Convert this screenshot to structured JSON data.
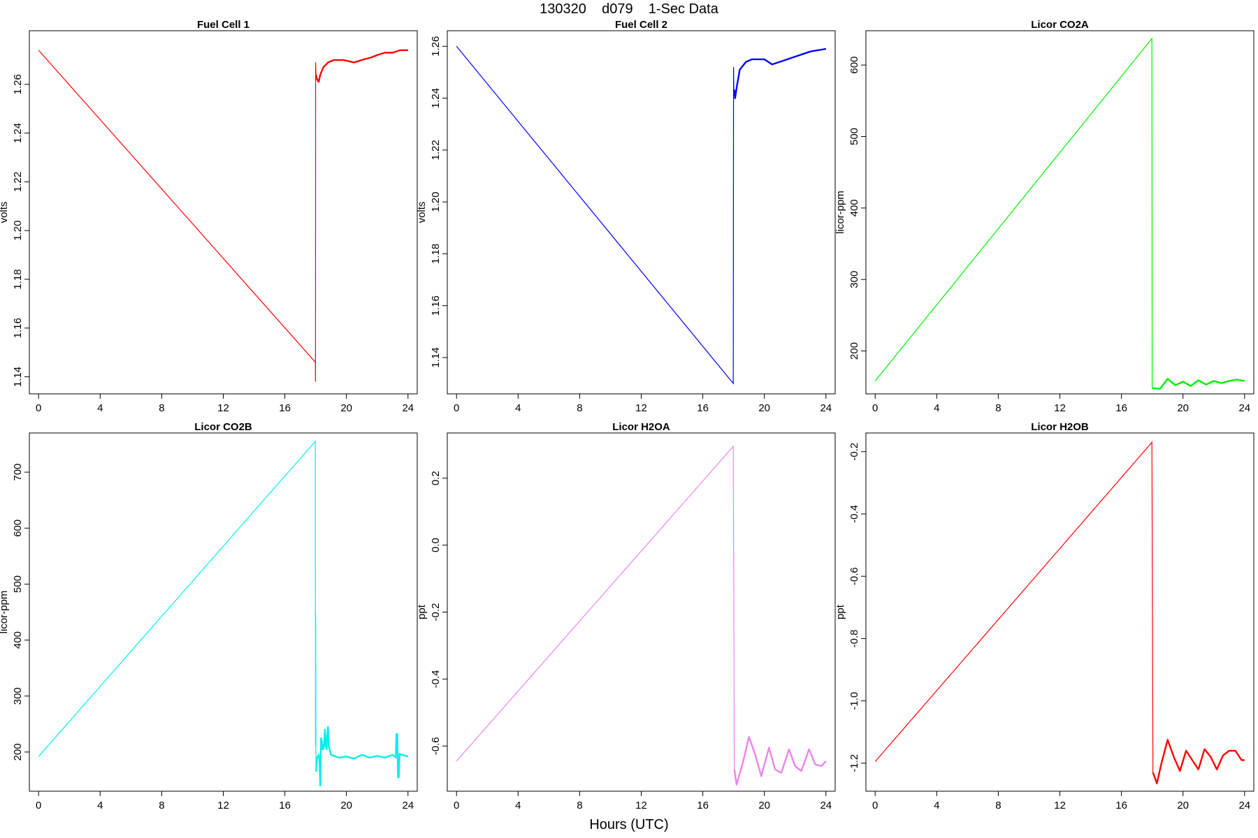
{
  "page": {
    "title": "130320    d079    1-Sec Data",
    "xlabel": "Hours (UTC)"
  },
  "chart_data": [
    {
      "type": "line",
      "title": "Fuel Cell 1",
      "ylabel": "volts",
      "color": "#ff0000",
      "xlim": [
        -0.6,
        24.6
      ],
      "ylim": [
        1.133,
        1.282
      ],
      "xticks": [
        0,
        4,
        8,
        12,
        16,
        20,
        24
      ],
      "yticks": [
        1.14,
        1.16,
        1.18,
        1.2,
        1.22,
        1.24,
        1.26
      ],
      "ytick_labels": [
        "1.14",
        "1.16",
        "1.18",
        "1.20",
        "1.22",
        "1.24",
        "1.26"
      ],
      "x": [
        0,
        17.98,
        17.99,
        18.0,
        18.02,
        18.05,
        18.1,
        18.2,
        18.3,
        18.5,
        18.8,
        19.2,
        19.8,
        20.5,
        21.0,
        21.6,
        22.0,
        22.5,
        23.0,
        23.5,
        24.0
      ],
      "y": [
        1.274,
        1.146,
        1.138,
        1.269,
        1.264,
        1.263,
        1.262,
        1.261,
        1.264,
        1.267,
        1.269,
        1.27,
        1.27,
        1.269,
        1.27,
        1.271,
        1.272,
        1.273,
        1.273,
        1.274,
        1.274
      ]
    },
    {
      "type": "line",
      "title": "Fuel Cell 2",
      "ylabel": "volts",
      "color": "#0000ff",
      "xlim": [
        -0.6,
        24.6
      ],
      "ylim": [
        1.126,
        1.266
      ],
      "xticks": [
        0,
        4,
        8,
        12,
        16,
        20,
        24
      ],
      "yticks": [
        1.14,
        1.16,
        1.18,
        1.2,
        1.22,
        1.24,
        1.26
      ],
      "ytick_labels": [
        "1.14",
        "1.16",
        "1.18",
        "1.20",
        "1.22",
        "1.24",
        "1.26"
      ],
      "x": [
        0,
        17.98,
        18.0,
        18.02,
        18.05,
        18.1,
        18.2,
        18.4,
        18.8,
        19.2,
        20.0,
        20.5,
        21.0,
        21.5,
        22.0,
        23.0,
        24.0
      ],
      "y": [
        1.26,
        1.13,
        1.252,
        1.241,
        1.243,
        1.24,
        1.244,
        1.251,
        1.254,
        1.255,
        1.255,
        1.253,
        1.254,
        1.255,
        1.256,
        1.258,
        1.259
      ],
      "spike": {
        "x": 18.02,
        "y": 1.252
      }
    },
    {
      "type": "line",
      "title": "Licor CO2A",
      "ylabel": "licor-ppm",
      "color": "#00ee00",
      "xlim": [
        -0.6,
        24.6
      ],
      "ylim": [
        140,
        648
      ],
      "xticks": [
        0,
        4,
        8,
        12,
        16,
        20,
        24
      ],
      "yticks": [
        200,
        300,
        400,
        500,
        600
      ],
      "ytick_labels": [
        "200",
        "300",
        "400",
        "500",
        "600"
      ],
      "x": [
        0,
        17.98,
        18.0,
        18.02,
        18.5,
        19.0,
        19.5,
        20.0,
        20.5,
        21.0,
        21.5,
        22.0,
        22.5,
        23.0,
        23.5,
        24.0
      ],
      "y": [
        158,
        637,
        150,
        148,
        147,
        161,
        152,
        157,
        151,
        159,
        153,
        158,
        155,
        158,
        160,
        158
      ]
    },
    {
      "type": "line",
      "title": "Licor CO2B",
      "ylabel": "licor-ppm",
      "color": "#00eeee",
      "xlim": [
        -0.6,
        24.6
      ],
      "ylim": [
        130,
        770
      ],
      "xticks": [
        0,
        4,
        8,
        12,
        16,
        20,
        24
      ],
      "yticks": [
        200,
        300,
        400,
        500,
        600,
        700
      ],
      "ytick_labels": [
        "200",
        "300",
        "400",
        "500",
        "600",
        "700"
      ],
      "x": [
        0,
        17.98,
        17.99,
        18.0,
        18.02,
        18.1,
        18.2,
        18.25,
        18.3,
        18.35,
        18.4,
        18.45,
        18.5,
        18.55,
        18.6,
        18.65,
        18.7,
        18.75,
        18.8,
        18.85,
        18.9,
        19.0,
        19.5,
        20.0,
        20.5,
        21.0,
        21.5,
        22.0,
        22.5,
        23.0,
        23.2,
        23.25,
        23.3,
        23.35,
        23.4,
        23.45,
        23.5,
        24.0
      ],
      "y": [
        192,
        755,
        210,
        448,
        165,
        190,
        195,
        185,
        140,
        225,
        220,
        205,
        205,
        215,
        240,
        210,
        205,
        230,
        245,
        210,
        205,
        195,
        190,
        192,
        188,
        195,
        190,
        193,
        190,
        195,
        190,
        232,
        232,
        155,
        155,
        197,
        196,
        192
      ]
    },
    {
      "type": "line",
      "title": "Licor H2OA",
      "ylabel": "ppt",
      "color": "#ee82ee",
      "xlim": [
        -0.6,
        24.6
      ],
      "ylim": [
        -0.735,
        0.335
      ],
      "xticks": [
        0,
        4,
        8,
        12,
        16,
        20,
        24
      ],
      "yticks": [
        -0.6,
        -0.4,
        -0.2,
        0.0,
        0.2
      ],
      "ytick_labels": [
        "-0.6",
        "-0.4",
        "-0.2",
        "0.0",
        "0.2"
      ],
      "x": [
        0,
        17.98,
        18.05,
        18.2,
        18.6,
        19.0,
        19.4,
        19.8,
        20.3,
        20.7,
        21.1,
        21.6,
        22.0,
        22.4,
        22.9,
        23.3,
        23.7,
        24.0
      ],
      "y": [
        -0.645,
        0.295,
        -0.67,
        -0.715,
        -0.65,
        -0.573,
        -0.625,
        -0.69,
        -0.605,
        -0.67,
        -0.68,
        -0.61,
        -0.66,
        -0.675,
        -0.61,
        -0.655,
        -0.66,
        -0.645
      ]
    },
    {
      "type": "line",
      "title": "Licor H2OB",
      "ylabel": "ppt",
      "color": "#ff0000",
      "xlim": [
        -0.6,
        24.6
      ],
      "ylim": [
        -1.29,
        -0.14
      ],
      "xticks": [
        0,
        4,
        8,
        12,
        16,
        20,
        24
      ],
      "yticks": [
        -1.2,
        -1.0,
        -0.8,
        -0.6,
        -0.4,
        -0.2
      ],
      "ytick_labels": [
        "-1.2",
        "-1.0",
        "-0.8",
        "-0.6",
        "-0.4",
        "-0.2"
      ],
      "x": [
        0,
        17.98,
        18.05,
        18.3,
        18.6,
        19.0,
        19.4,
        19.8,
        20.2,
        20.6,
        21.0,
        21.4,
        21.8,
        22.2,
        22.6,
        23.0,
        23.4,
        23.8,
        24.0
      ],
      "y": [
        -1.195,
        -0.17,
        -1.23,
        -1.265,
        -1.2,
        -1.125,
        -1.18,
        -1.225,
        -1.16,
        -1.19,
        -1.22,
        -1.155,
        -1.18,
        -1.22,
        -1.175,
        -1.16,
        -1.16,
        -1.19,
        -1.19
      ]
    }
  ]
}
